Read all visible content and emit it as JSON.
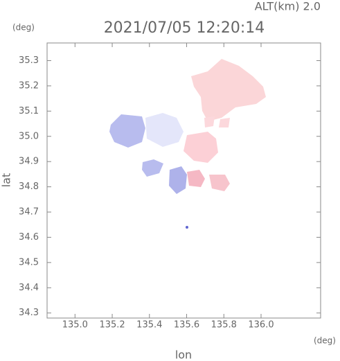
{
  "chart_data": {
    "type": "map",
    "title": "2021/07/05 12:20:14",
    "subtitle": "ALT(km) 2.0",
    "x_label": "lon",
    "y_label": "lat",
    "x_unit": "(deg)",
    "y_unit": "(deg)",
    "xlim": [
      134.85,
      136.32
    ],
    "ylim": [
      34.28,
      35.37
    ],
    "xticks": [
      {
        "value": 135,
        "label": "135.0"
      },
      135.2,
      135.4,
      135.6,
      135.8,
      {
        "value": 136,
        "label": "136.0"
      }
    ],
    "yticks": [
      34.3,
      34.4,
      34.5,
      34.6,
      34.7,
      34.8,
      34.9,
      {
        "value": 35,
        "label": "35.0"
      },
      35.1,
      35.2,
      35.3
    ]
  }
}
